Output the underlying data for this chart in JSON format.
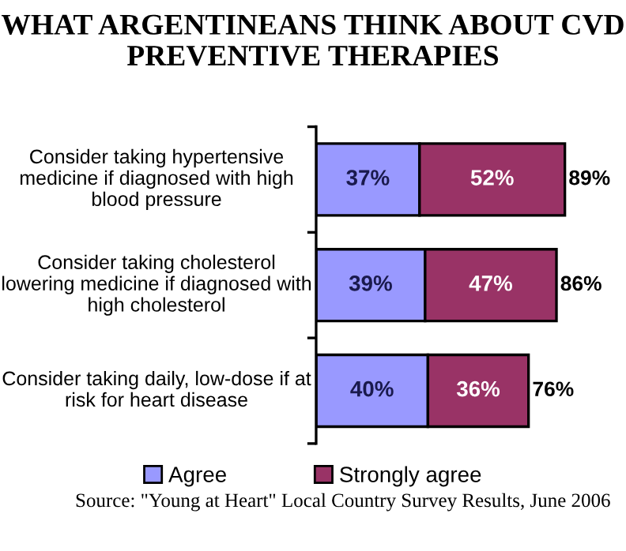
{
  "chart_data": {
    "type": "bar",
    "orientation": "horizontal",
    "stacked": true,
    "title": "WHAT ARGENTINEANS THINK ABOUT CVD PREVENTIVE THERAPIES",
    "categories": [
      "Consider taking hypertensive medicine if diagnosed with high blood pressure",
      "Consider taking cholesterol lowering medicine if diagnosed with high cholesterol",
      "Consider taking daily, low-dose if at risk for heart disease"
    ],
    "series": [
      {
        "name": "Agree",
        "color": "#9999ff",
        "values": [
          37,
          39,
          40
        ],
        "value_labels": [
          "37%",
          "39%",
          "40%"
        ]
      },
      {
        "name": "Strongly agree",
        "color": "#993366",
        "values": [
          52,
          47,
          36
        ],
        "value_labels": [
          "52%",
          "47%",
          "36%"
        ]
      }
    ],
    "totals": [
      "89%",
      "86%",
      "76%"
    ],
    "legend": "bottom",
    "tick_labels": false,
    "annotations": [
      "Source: \"Young at Heart\" Local Country Survey Results, June 2006"
    ]
  }
}
